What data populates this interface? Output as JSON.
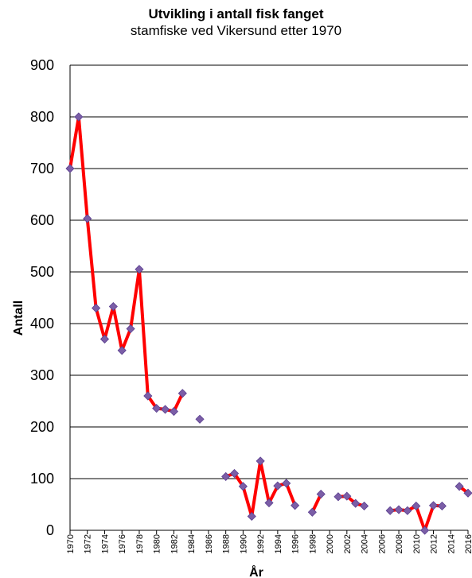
{
  "chart_data": {
    "type": "line",
    "title": "Utvikling i antall fisk fanget",
    "subtitle": "stamfiske ved Vikersund etter 1970",
    "xlabel": "År",
    "ylabel": "Antall",
    "ylim": [
      0,
      900
    ],
    "yticks": [
      "0",
      "100",
      "200",
      "300",
      "400",
      "500",
      "600",
      "700",
      "800",
      "900"
    ],
    "xlim": [
      1970,
      2016
    ],
    "xticks": [
      "1970",
      "1972",
      "1974",
      "1976",
      "1978",
      "1980",
      "1982",
      "1984",
      "1986",
      "1988",
      "1990",
      "1992",
      "1994",
      "1996",
      "1998",
      "2000",
      "2002",
      "2004",
      "2006",
      "2008",
      "2010",
      "2012",
      "2014",
      "2016"
    ],
    "grid": true,
    "line_color": "#ff0000",
    "marker_color": "#7b5ea7",
    "series": [
      {
        "points": [
          [
            1970,
            700
          ],
          [
            1971,
            800
          ],
          [
            1972,
            603
          ],
          [
            1973,
            430
          ],
          [
            1974,
            370
          ],
          [
            1975,
            433
          ],
          [
            1976,
            348
          ],
          [
            1977,
            390
          ],
          [
            1978,
            505
          ],
          [
            1979,
            260
          ],
          [
            1980,
            236
          ],
          [
            1981,
            234
          ],
          [
            1982,
            230
          ],
          [
            1983,
            265
          ],
          [
            1985,
            215
          ],
          [
            1988,
            104
          ],
          [
            1989,
            110
          ],
          [
            1990,
            85
          ],
          [
            1991,
            27
          ],
          [
            1992,
            134
          ],
          [
            1993,
            53
          ],
          [
            1994,
            86
          ],
          [
            1995,
            91
          ],
          [
            1996,
            48
          ],
          [
            1998,
            35
          ],
          [
            1999,
            70
          ],
          [
            2001,
            65
          ],
          [
            2002,
            66
          ],
          [
            2003,
            52
          ],
          [
            2004,
            47
          ],
          [
            2007,
            38
          ],
          [
            2008,
            40
          ],
          [
            2009,
            38
          ],
          [
            2010,
            47
          ],
          [
            2011,
            0
          ],
          [
            2012,
            48
          ],
          [
            2013,
            47
          ],
          [
            2015,
            85
          ],
          [
            2016,
            72
          ]
        ]
      }
    ]
  }
}
